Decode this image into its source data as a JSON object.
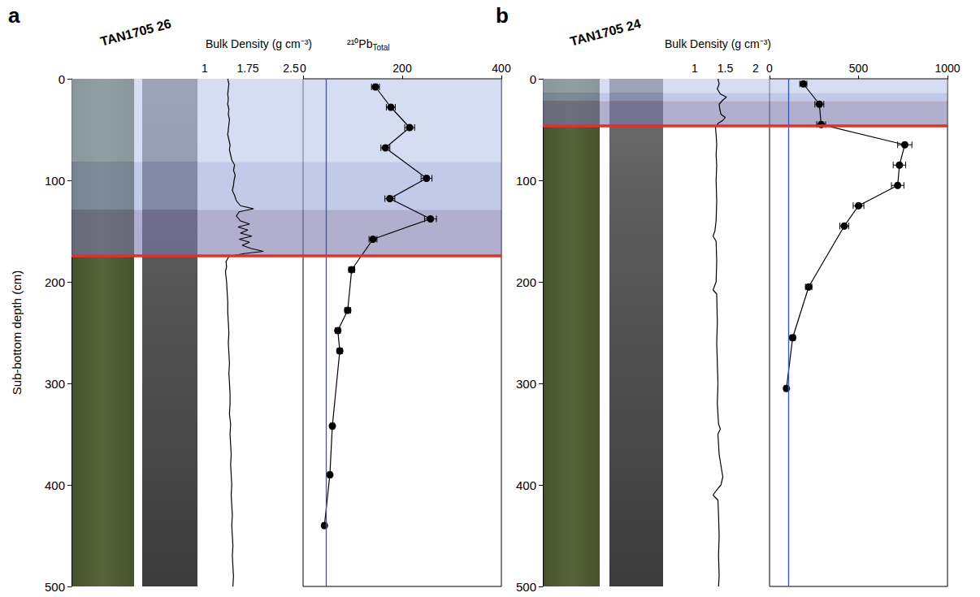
{
  "chart_data": [
    {
      "type": "line",
      "panel": "a",
      "title": "TAN1705 26",
      "y_label": "Sub-bottom depth (cm)",
      "ylim": [
        0,
        500
      ],
      "yticks": [
        0,
        100,
        200,
        300,
        400,
        500
      ],
      "bands": [
        {
          "from": 0,
          "to": 82,
          "color": "#b7c6ea"
        },
        {
          "from": 82,
          "to": 129,
          "color": "#98a6d8"
        },
        {
          "from": 129,
          "to": 174,
          "color": "#7e78ad"
        }
      ],
      "boundary": {
        "depth": 174,
        "color": "#e0312a"
      },
      "plots": [
        {
          "type": "line",
          "x_label": "Bulk Density (g cm⁻³)",
          "xlim": [
            1,
            2.5
          ],
          "xticks": [
            1,
            1.75,
            2.5
          ],
          "color": "#000000",
          "x": [
            1.4,
            1.42,
            1.41,
            1.4,
            1.41,
            1.4,
            1.42,
            1.41,
            1.43,
            1.42,
            1.41,
            1.4,
            1.42,
            1.44,
            1.43,
            1.45,
            1.47,
            1.52,
            1.5,
            1.53,
            1.51,
            1.5,
            1.48,
            1.52,
            1.55,
            1.62,
            1.85,
            1.6,
            1.55,
            1.62,
            1.78,
            1.58,
            1.75,
            1.62,
            1.82,
            1.6,
            1.78,
            1.65,
            1.8,
            2.02,
            1.7,
            1.42,
            1.37,
            1.38,
            1.36,
            1.38,
            1.39,
            1.4,
            1.4,
            1.41,
            1.42,
            1.41,
            1.42,
            1.43,
            1.42,
            1.43,
            1.44,
            1.44,
            1.43,
            1.45,
            1.44,
            1.45,
            1.46,
            1.45,
            1.46,
            1.47,
            1.46,
            1.47,
            1.48,
            1.47,
            1.48,
            1.49,
            1.48,
            1.49,
            1.5,
            1.49
          ],
          "y": [
            0,
            5,
            10,
            15,
            20,
            25,
            30,
            35,
            40,
            45,
            50,
            55,
            60,
            65,
            70,
            75,
            80,
            85,
            90,
            95,
            100,
            105,
            110,
            115,
            120,
            125,
            128,
            131,
            135,
            140,
            143,
            146,
            149,
            152,
            155,
            158,
            161,
            164,
            167,
            170,
            172,
            175,
            180,
            185,
            190,
            200,
            210,
            220,
            230,
            240,
            250,
            260,
            270,
            280,
            290,
            300,
            310,
            320,
            330,
            340,
            350,
            360,
            370,
            380,
            390,
            400,
            410,
            420,
            430,
            440,
            450,
            460,
            470,
            480,
            490,
            500
          ]
        },
        {
          "type": "line",
          "x_label": "²¹⁰Pb",
          "x_label_subscript": "Total",
          "xlim": [
            0,
            400
          ],
          "xticks": [
            0,
            200,
            400
          ],
          "color": "#000000",
          "marker": "circle",
          "x": [
            146,
            177,
            215,
            166,
            249,
            175,
            257,
            141,
            98,
            90,
            70,
            74,
            59,
            54,
            43
          ],
          "y": [
            8,
            28,
            48,
            68,
            98,
            118,
            138,
            158,
            188,
            228,
            248,
            268,
            342,
            390,
            440
          ],
          "errors": [
            8,
            9,
            10,
            9,
            11,
            10,
            12,
            8,
            6,
            6,
            5,
            5,
            4,
            4,
            4
          ],
          "reference_line": {
            "value": 46,
            "color": "#3953c4"
          }
        }
      ]
    },
    {
      "type": "line",
      "panel": "b",
      "title": "TAN1705 24",
      "ylim": [
        0,
        500
      ],
      "yticks": [
        0,
        100,
        200,
        300,
        400,
        500
      ],
      "bands": [
        {
          "from": 0,
          "to": 14,
          "color": "#b7c6ea"
        },
        {
          "from": 14,
          "to": 22,
          "color": "#98a6d8"
        },
        {
          "from": 22,
          "to": 46,
          "color": "#7e78ad"
        }
      ],
      "boundary": {
        "depth": 46,
        "color": "#e0312a"
      },
      "plots": [
        {
          "type": "line",
          "x_label": "Bulk Density (g cm⁻³)",
          "xlim": [
            1,
            2
          ],
          "xticks": [
            1,
            1.5,
            2
          ],
          "color": "#000000",
          "x": [
            1.38,
            1.4,
            1.37,
            1.42,
            1.52,
            1.46,
            1.4,
            1.41,
            1.43,
            1.5,
            1.46,
            1.38,
            1.34,
            1.35,
            1.36,
            1.35,
            1.36,
            1.35,
            1.36,
            1.35,
            1.33,
            1.3,
            1.35,
            1.36,
            1.35,
            1.3,
            1.36,
            1.37,
            1.36,
            1.37,
            1.38,
            1.37,
            1.39,
            1.42,
            1.38,
            1.4,
            1.44,
            1.46,
            1.43,
            1.36,
            1.3,
            1.38,
            1.39,
            1.4,
            1.39,
            1.4,
            1.39
          ],
          "y": [
            0,
            5,
            10,
            15,
            18,
            21,
            25,
            30,
            35,
            38,
            41,
            44,
            48,
            55,
            65,
            75,
            85,
            100,
            120,
            140,
            150,
            155,
            160,
            180,
            200,
            208,
            212,
            240,
            260,
            280,
            300,
            320,
            340,
            345,
            350,
            370,
            385,
            392,
            400,
            405,
            410,
            415,
            430,
            450,
            470,
            490,
            500
          ]
        },
        {
          "type": "line",
          "xlim": [
            0,
            1000
          ],
          "xticks": [
            0,
            500,
            1000
          ],
          "color": "#000000",
          "marker": "circle",
          "x": [
            190,
            280,
            290,
            760,
            730,
            720,
            500,
            420,
            220,
            130,
            95
          ],
          "y": [
            5,
            25,
            45,
            65,
            85,
            105,
            125,
            145,
            205,
            255,
            305
          ],
          "errors": [
            20,
            25,
            25,
            40,
            35,
            35,
            30,
            25,
            18,
            15,
            12
          ],
          "reference_line": {
            "value": 105,
            "color": "#3953c4"
          }
        }
      ]
    }
  ]
}
